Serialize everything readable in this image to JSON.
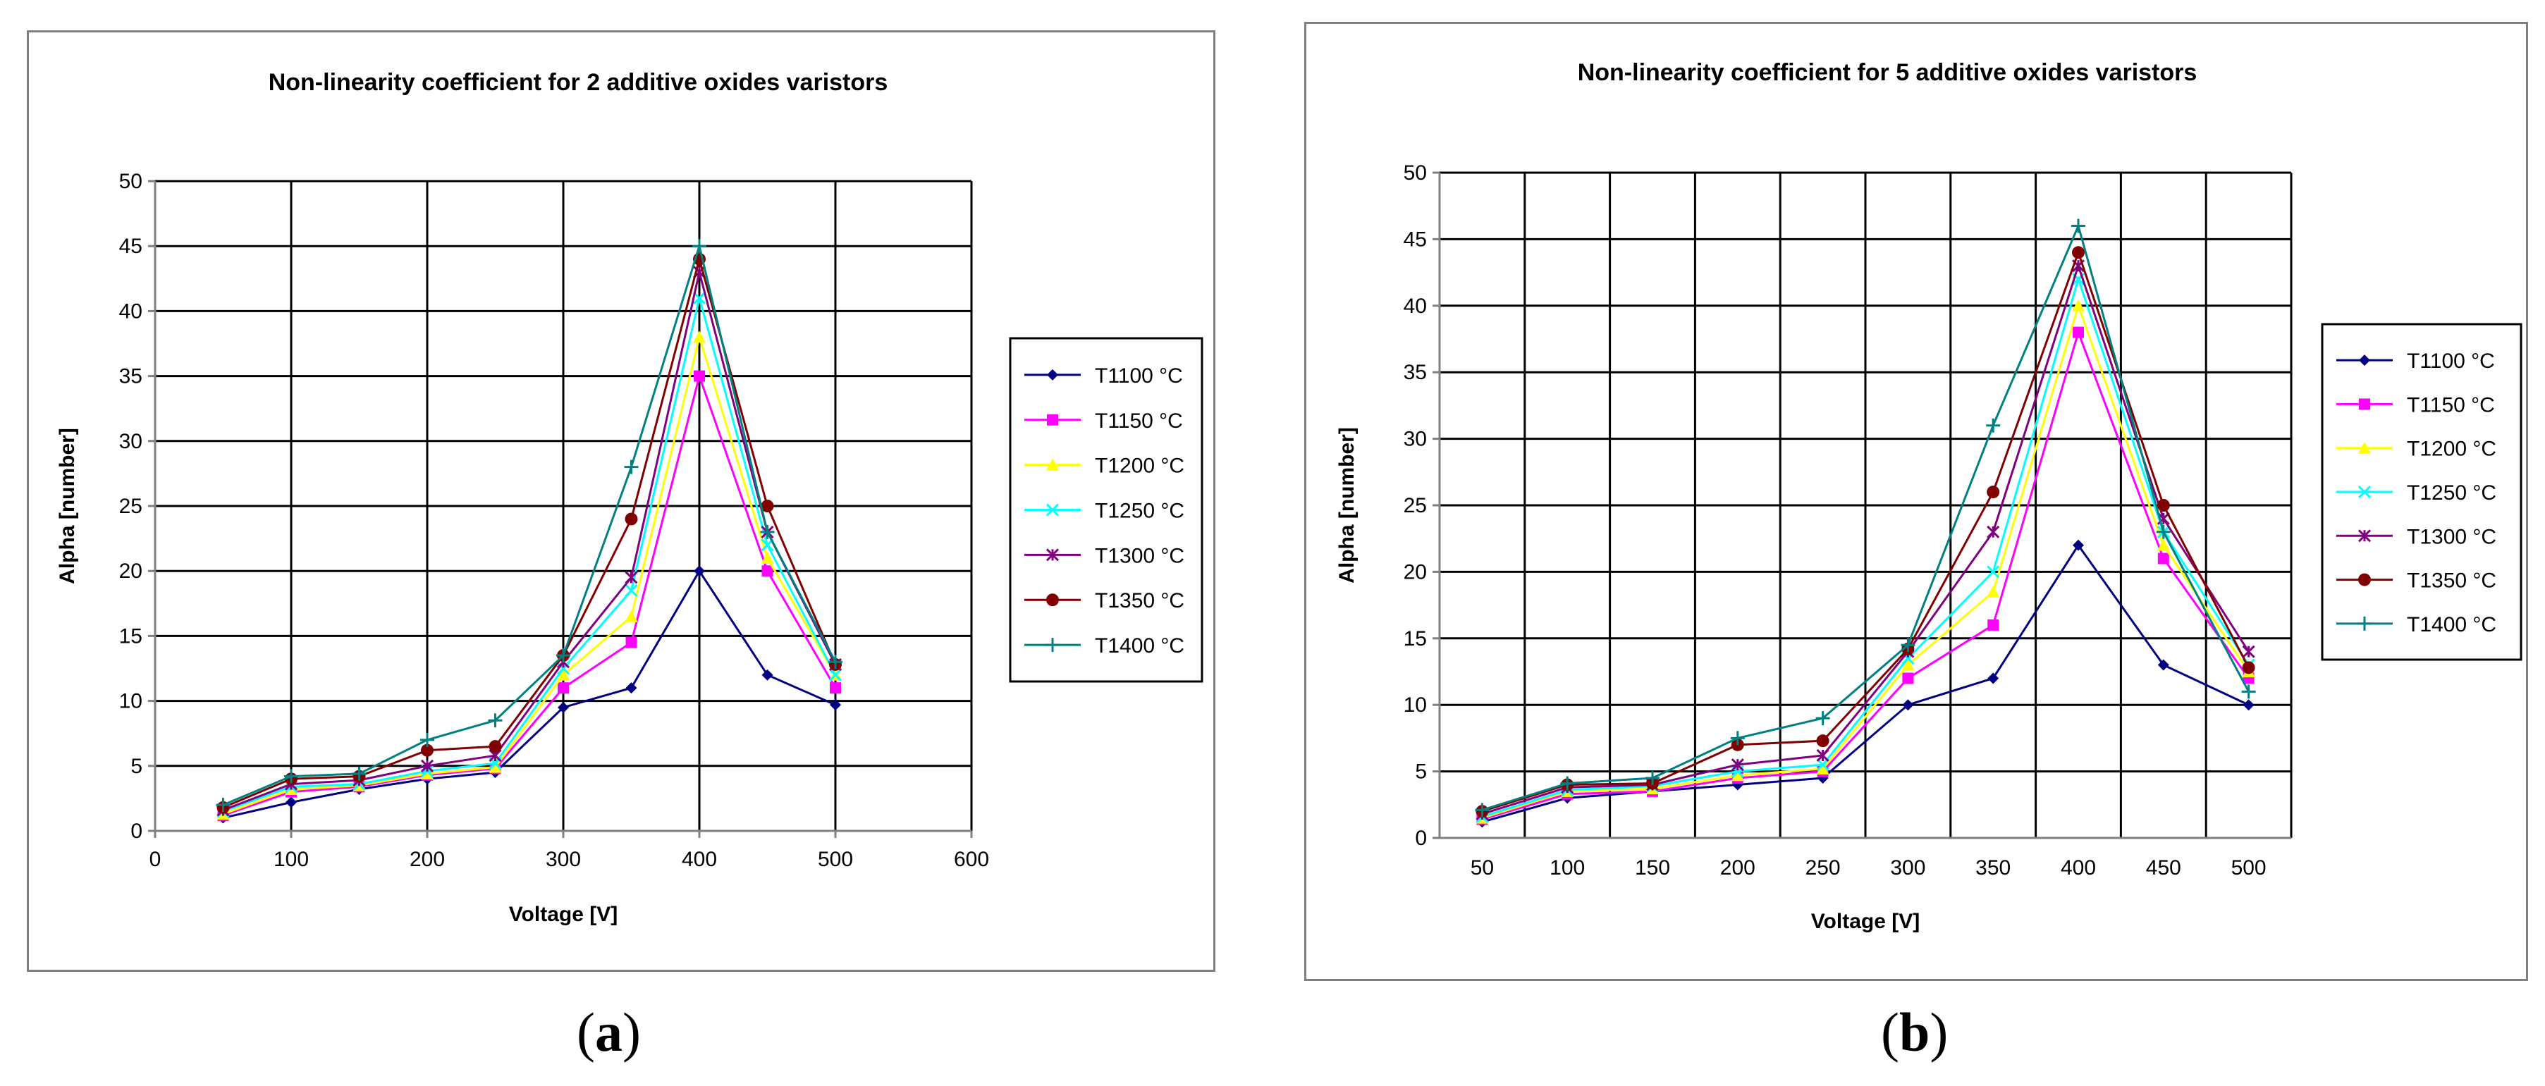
{
  "panels": [
    {
      "id": "a",
      "caption": {
        "open": "(",
        "letter": "a",
        "close": ")"
      },
      "chart_data": {
        "type": "line",
        "title": "Non-linearity coefficient for 2 additive oxides varistors",
        "xlabel": "Voltage [V]",
        "ylabel": "Alpha [number]",
        "xaxis": "linear",
        "xlim": [
          0,
          600
        ],
        "xticks": [
          0,
          100,
          200,
          300,
          400,
          500,
          600
        ],
        "ylim": [
          0,
          50
        ],
        "yticks": [
          0,
          5,
          10,
          15,
          20,
          25,
          30,
          35,
          40,
          45,
          50
        ],
        "grid": true,
        "legend_position": "right",
        "x": [
          50,
          100,
          150,
          200,
          250,
          300,
          350,
          400,
          450,
          500
        ],
        "series": [
          {
            "name": "T1100 °C",
            "color": "#000080",
            "marker": "diamond",
            "values": [
              1.0,
              2.2,
              3.2,
              4.0,
              4.5,
              9.5,
              11.0,
              20.0,
              12.0,
              9.7
            ]
          },
          {
            "name": "T1150 °C",
            "color": "#ff00ff",
            "marker": "square",
            "values": [
              1.2,
              3.0,
              3.4,
              4.3,
              4.8,
              11.0,
              14.5,
              35.0,
              20.0,
              11.0
            ]
          },
          {
            "name": "T1200 °C",
            "color": "#ffff00",
            "marker": "triangle",
            "values": [
              1.3,
              3.2,
              3.5,
              4.4,
              4.9,
              12.0,
              16.5,
              38.0,
              21.0,
              12.0
            ]
          },
          {
            "name": "T1250 °C",
            "color": "#00ffff",
            "marker": "x",
            "values": [
              1.5,
              3.4,
              3.6,
              4.6,
              5.2,
              12.5,
              18.5,
              41.0,
              22.0,
              12.0
            ]
          },
          {
            "name": "T1300 °C",
            "color": "#800080",
            "marker": "star",
            "values": [
              1.6,
              3.6,
              3.9,
              5.0,
              5.8,
              13.0,
              19.5,
              43.0,
              23.0,
              12.8
            ]
          },
          {
            "name": "T1350 °C",
            "color": "#800000",
            "marker": "circle",
            "values": [
              1.8,
              4.0,
              4.2,
              6.2,
              6.5,
              13.5,
              24.0,
              44.0,
              25.0,
              12.8
            ]
          },
          {
            "name": "T1400 °C",
            "color": "#008080",
            "marker": "plus",
            "values": [
              2.0,
              4.2,
              4.4,
              7.0,
              8.5,
              13.5,
              28.0,
              45.0,
              23.0,
              13.0
            ]
          }
        ]
      }
    },
    {
      "id": "b",
      "caption": {
        "open": "(",
        "letter": "b",
        "close": ")"
      },
      "chart_data": {
        "type": "line",
        "title": "Non-linearity coefficient for 5 additive oxides varistors",
        "xlabel": "Voltage [V]",
        "ylabel": "Alpha [number]",
        "xaxis": "category",
        "categories": [
          "50",
          "100",
          "150",
          "200",
          "250",
          "300",
          "350",
          "400",
          "450",
          "500"
        ],
        "ylim": [
          0,
          50
        ],
        "yticks": [
          0,
          5,
          10,
          15,
          20,
          25,
          30,
          35,
          40,
          45,
          50
        ],
        "grid": true,
        "legend_position": "right",
        "series": [
          {
            "name": "T1100 °C",
            "color": "#000080",
            "marker": "diamond",
            "values": [
              1.2,
              3.0,
              3.5,
              4.0,
              4.5,
              10.0,
              12.0,
              22.0,
              13.0,
              10.0
            ]
          },
          {
            "name": "T1150 °C",
            "color": "#ff00ff",
            "marker": "square",
            "values": [
              1.4,
              3.3,
              3.5,
              4.5,
              5.0,
              12.0,
              16.0,
              38.0,
              21.0,
              12.0
            ]
          },
          {
            "name": "T1200 °C",
            "color": "#ffff00",
            "marker": "triangle",
            "values": [
              1.5,
              3.5,
              3.7,
              4.7,
              5.2,
              13.0,
              18.5,
              40.0,
              22.0,
              12.5
            ]
          },
          {
            "name": "T1250 °C",
            "color": "#00ffff",
            "marker": "x",
            "values": [
              1.6,
              3.6,
              3.9,
              5.0,
              5.5,
              13.5,
              20.0,
              42.0,
              23.0,
              13.0
            ]
          },
          {
            "name": "T1300 °C",
            "color": "#800080",
            "marker": "star",
            "values": [
              1.8,
              3.8,
              4.0,
              5.5,
              6.2,
              14.0,
              23.0,
              43.0,
              24.0,
              14.0
            ]
          },
          {
            "name": "T1350 °C",
            "color": "#800000",
            "marker": "circle",
            "values": [
              2.0,
              4.0,
              4.1,
              7.0,
              7.3,
              14.2,
              26.0,
              44.0,
              25.0,
              12.8
            ]
          },
          {
            "name": "T1400 °C",
            "color": "#008080",
            "marker": "plus",
            "values": [
              2.1,
              4.1,
              4.5,
              7.5,
              9.0,
              14.5,
              31.0,
              46.0,
              23.0,
              11.0
            ]
          }
        ]
      }
    }
  ]
}
